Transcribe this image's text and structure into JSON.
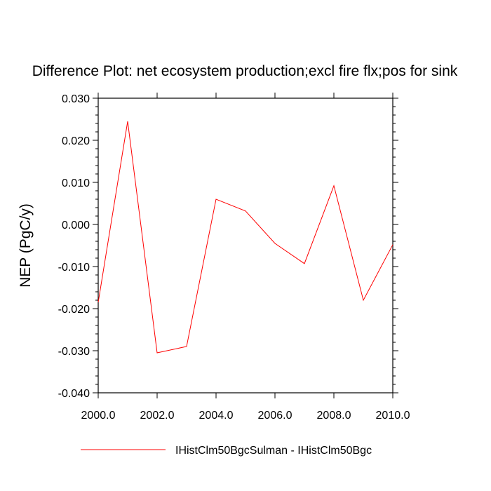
{
  "chart_data": {
    "type": "line",
    "title": "Difference Plot: net ecosystem production;excl fire flx;pos for sink",
    "xlabel": "",
    "ylabel": "NEP  (PgC/y)",
    "xlim": [
      2000,
      2010
    ],
    "ylim": [
      -0.04,
      0.03
    ],
    "x_ticks": [
      2000,
      2002,
      2004,
      2006,
      2008,
      2010
    ],
    "x_tick_labels": [
      "2000.0",
      "2002.0",
      "2004.0",
      "2006.0",
      "2008.0",
      "2010.0"
    ],
    "y_ticks": [
      0.03,
      0.02,
      0.01,
      0.0,
      -0.01,
      -0.02,
      -0.03,
      -0.04
    ],
    "y_tick_labels": [
      "0.030",
      "0.020",
      "0.010",
      "0.000",
      "-0.010",
      "-0.020",
      "-0.030",
      "-0.040"
    ],
    "grid": false,
    "legend_position": "bottom",
    "series": [
      {
        "name": "IHistClm50BgcSulman - IHistClm50Bgc",
        "color": "#ff0000",
        "x": [
          2000,
          2001,
          2002,
          2003,
          2004,
          2005,
          2006,
          2007,
          2008,
          2009,
          2010
        ],
        "y": [
          -0.0185,
          0.0245,
          -0.0305,
          -0.029,
          0.006,
          0.0032,
          -0.0045,
          -0.0093,
          0.0092,
          -0.018,
          -0.0048
        ]
      }
    ]
  }
}
